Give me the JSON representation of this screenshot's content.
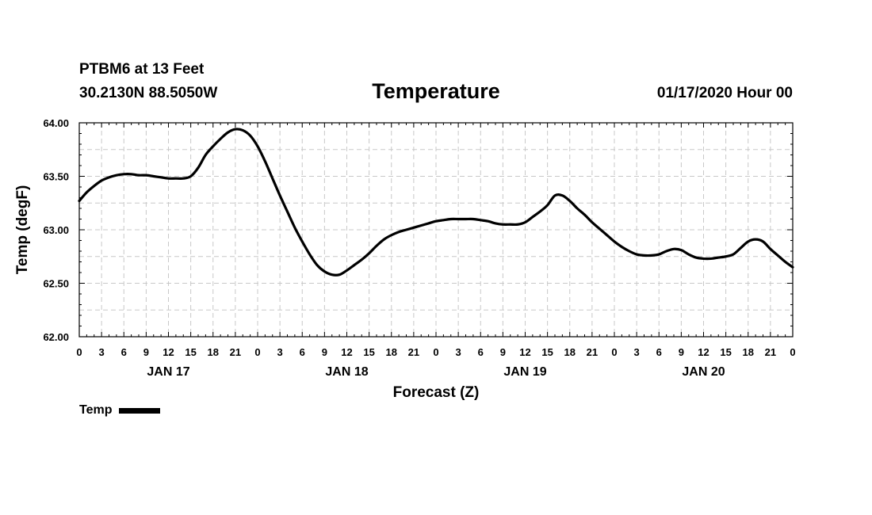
{
  "header": {
    "station": "PTBM6 at 13 Feet",
    "coords": "30.2130N 88.5050W",
    "title": "Temperature",
    "datetime": "01/17/2020 Hour 00"
  },
  "chart_data": {
    "type": "line",
    "title": "Temperature",
    "xlabel": "Forecast (Z)",
    "ylabel": "Temp (degF)",
    "ylim": [
      62.0,
      64.0
    ],
    "xlim_hours": [
      0,
      96
    ],
    "y_ticks": [
      "64.00",
      "63.50",
      "63.00",
      "62.50",
      "62.00"
    ],
    "x_tick_labels": [
      "0",
      "3",
      "6",
      "9",
      "12",
      "15",
      "18",
      "21",
      "0",
      "3",
      "6",
      "9",
      "12",
      "15",
      "18",
      "21",
      "0",
      "3",
      "6",
      "9",
      "12",
      "15",
      "18",
      "21",
      "0",
      "3",
      "6",
      "9",
      "12",
      "15",
      "18",
      "21",
      "0"
    ],
    "day_labels": [
      {
        "label": "JAN 17",
        "hour": 12
      },
      {
        "label": "JAN 18",
        "hour": 36
      },
      {
        "label": "JAN 19",
        "hour": 60
      },
      {
        "label": "JAN 20",
        "hour": 84
      }
    ],
    "grid": true,
    "legend_position": "bottom-left",
    "series": [
      {
        "name": "Temp",
        "color": "#000000",
        "x": [
          0,
          1,
          2,
          3,
          4,
          5,
          6,
          7,
          8,
          9,
          10,
          11,
          12,
          13,
          14,
          15,
          16,
          17,
          18,
          19,
          20,
          21,
          22,
          23,
          24,
          25,
          26,
          27,
          28,
          29,
          30,
          31,
          32,
          33,
          34,
          35,
          36,
          37,
          38,
          39,
          40,
          41,
          42,
          43,
          44,
          45,
          46,
          47,
          48,
          49,
          50,
          51,
          52,
          53,
          54,
          55,
          56,
          57,
          58,
          59,
          60,
          61,
          62,
          63,
          64,
          65,
          66,
          67,
          68,
          69,
          70,
          71,
          72,
          73,
          74,
          75,
          76,
          77,
          78,
          79,
          80,
          81,
          82,
          83,
          84,
          85,
          86,
          87,
          88,
          89,
          90,
          91,
          92,
          93,
          94,
          95,
          96
        ],
        "y": [
          63.27,
          63.35,
          63.41,
          63.46,
          63.49,
          63.51,
          63.52,
          63.52,
          63.51,
          63.51,
          63.5,
          63.49,
          63.48,
          63.48,
          63.48,
          63.5,
          63.58,
          63.7,
          63.78,
          63.85,
          63.91,
          63.94,
          63.93,
          63.88,
          63.78,
          63.64,
          63.48,
          63.32,
          63.17,
          63.02,
          62.89,
          62.77,
          62.67,
          62.61,
          62.58,
          62.58,
          62.62,
          62.67,
          62.72,
          62.78,
          62.85,
          62.91,
          62.95,
          62.98,
          63.0,
          63.02,
          63.04,
          63.06,
          63.08,
          63.09,
          63.1,
          63.1,
          63.1,
          63.1,
          63.09,
          63.08,
          63.06,
          63.05,
          63.05,
          63.05,
          63.07,
          63.12,
          63.17,
          63.23,
          63.32,
          63.32,
          63.27,
          63.2,
          63.14,
          63.07,
          63.01,
          62.95,
          62.89,
          62.84,
          62.8,
          62.77,
          62.76,
          62.76,
          62.77,
          62.8,
          62.82,
          62.81,
          62.77,
          62.74,
          62.73,
          62.73,
          62.74,
          62.75,
          62.77,
          62.83,
          62.89,
          62.91,
          62.89,
          62.82,
          62.76,
          62.7,
          62.65
        ]
      }
    ]
  },
  "legend": {
    "label": "Temp"
  }
}
